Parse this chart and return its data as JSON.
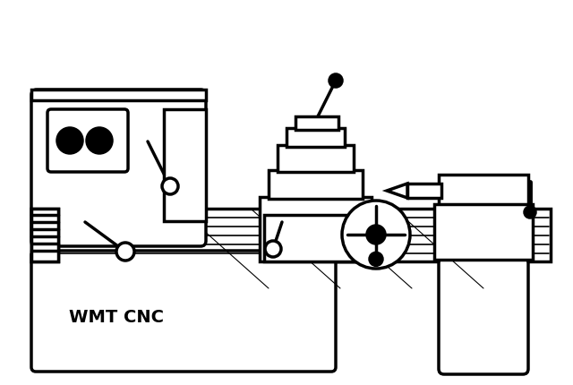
{
  "bg_color": "#ffffff",
  "lc": "#000000",
  "lw": 2.5,
  "label": "WMT CNC",
  "label_fontsize": 14
}
